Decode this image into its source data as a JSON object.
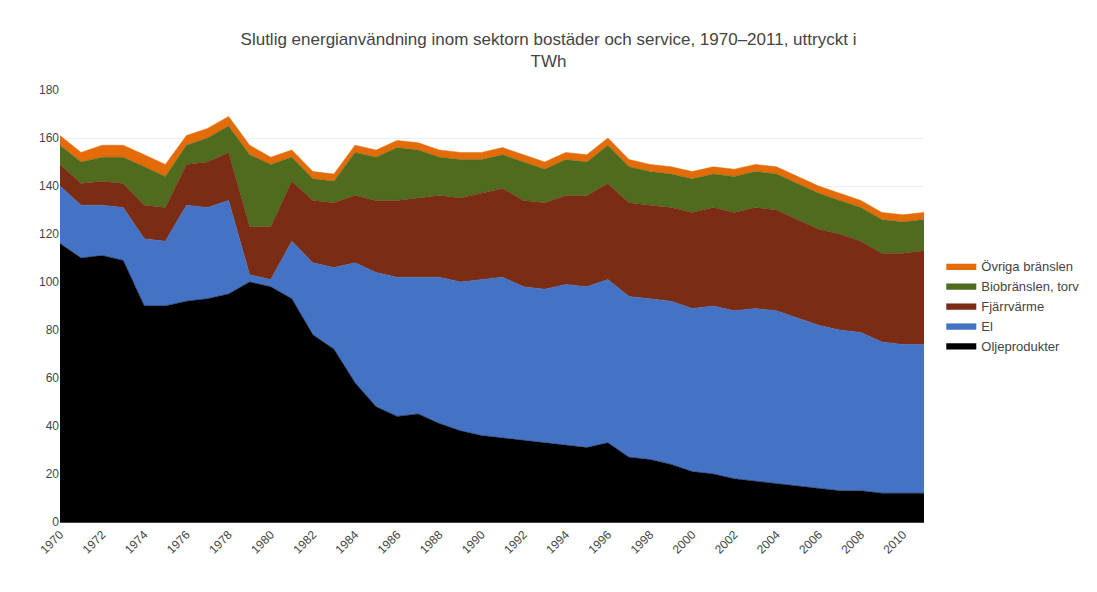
{
  "chart_data": {
    "type": "area",
    "stacked": true,
    "title": "Slutlig energianvändning inom sektorn bostäder och service, 1970–2011, uttryckt i\nTWh",
    "x": [
      1970,
      1971,
      1972,
      1973,
      1974,
      1975,
      1976,
      1977,
      1978,
      1979,
      1980,
      1981,
      1982,
      1983,
      1984,
      1985,
      1986,
      1987,
      1988,
      1989,
      1990,
      1991,
      1992,
      1993,
      1994,
      1995,
      1996,
      1997,
      1998,
      1999,
      2000,
      2001,
      2002,
      2003,
      2004,
      2005,
      2006,
      2007,
      2008,
      2009,
      2010,
      2011
    ],
    "series": [
      {
        "name": "Oljeprodukter",
        "color": "#000000",
        "values": [
          116,
          110,
          111,
          109,
          90,
          90,
          92,
          93,
          95,
          100,
          98,
          93,
          78,
          72,
          58,
          48,
          44,
          45,
          41,
          38,
          36,
          35,
          34,
          33,
          32,
          31,
          33,
          27,
          26,
          24,
          21,
          20,
          18,
          17,
          16,
          15,
          14,
          13,
          13,
          12,
          12,
          12
        ]
      },
      {
        "name": "El",
        "color": "#4472C4",
        "values": [
          24,
          22,
          21,
          22,
          28,
          27,
          40,
          38,
          39,
          3,
          3,
          24,
          30,
          34,
          50,
          56,
          58,
          57,
          61,
          62,
          65,
          67,
          64,
          64,
          67,
          67,
          68,
          67,
          67,
          68,
          68,
          70,
          70,
          72,
          72,
          70,
          68,
          67,
          66,
          63,
          62,
          62
        ]
      },
      {
        "name": "Fjärrvärme",
        "color": "#7B2C14",
        "values": [
          9,
          9,
          10,
          10,
          14,
          14,
          17,
          19,
          20,
          20,
          22,
          25,
          26,
          27,
          28,
          30,
          32,
          33,
          34,
          35,
          36,
          37,
          36,
          36,
          37,
          38,
          40,
          39,
          39,
          39,
          40,
          41,
          41,
          42,
          42,
          41,
          40,
          40,
          38,
          37,
          38,
          39
        ]
      },
      {
        "name": "Biobränslen, torv",
        "color": "#4E6B1E",
        "values": [
          8,
          9,
          10,
          11,
          16,
          13,
          8,
          10,
          11,
          30,
          26,
          10,
          9,
          9,
          18,
          18,
          22,
          20,
          16,
          16,
          14,
          14,
          16,
          14,
          15,
          14,
          16,
          15,
          14,
          14,
          14,
          14,
          15,
          15,
          15,
          15,
          15,
          14,
          14,
          14,
          13,
          13
        ]
      },
      {
        "name": "Övriga bränslen",
        "color": "#E36C09",
        "values": [
          4,
          4,
          5,
          5,
          5,
          5,
          4,
          4,
          4,
          4,
          3,
          3,
          3,
          3,
          3,
          3,
          3,
          3,
          3,
          3,
          3,
          3,
          3,
          3,
          3,
          3,
          3,
          3,
          3,
          3,
          3,
          3,
          3,
          3,
          3,
          3,
          3,
          3,
          3,
          3,
          3,
          3
        ]
      }
    ],
    "xlim": [
      1970,
      2011
    ],
    "xticks": [
      1970,
      1972,
      1974,
      1976,
      1978,
      1980,
      1982,
      1984,
      1986,
      1988,
      1990,
      1992,
      1994,
      1996,
      1998,
      2000,
      2002,
      2004,
      2006,
      2008,
      2010
    ],
    "ylim": [
      0,
      180
    ],
    "yticks": [
      0,
      20,
      40,
      60,
      80,
      100,
      120,
      140,
      160,
      180
    ],
    "grid": "y",
    "legend": "right"
  }
}
